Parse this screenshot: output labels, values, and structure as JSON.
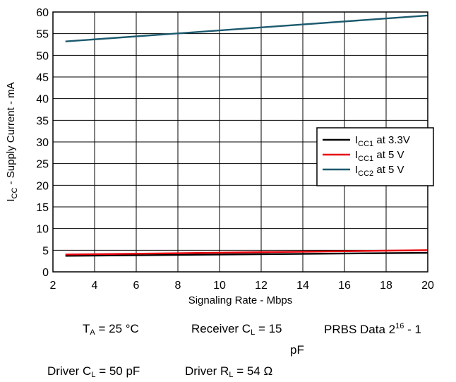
{
  "chart_data": {
    "type": "line",
    "xlabel": "Signaling Rate - Mbps",
    "ylabel": {
      "main": "I",
      "sub": "CC",
      "rest": " - Supply Current - mA"
    },
    "xlim": [
      2,
      20
    ],
    "ylim": [
      0,
      60
    ],
    "xticks": [
      2,
      4,
      6,
      8,
      10,
      12,
      14,
      16,
      18,
      20
    ],
    "yticks": [
      0,
      5,
      10,
      15,
      20,
      25,
      30,
      35,
      40,
      45,
      50,
      55,
      60
    ],
    "grid": true,
    "legend_position": "right",
    "series": [
      {
        "name": "ICC1 at 3.3V",
        "label_main": "I",
        "label_sub": "CC1",
        "label_rest": " at 3.3V",
        "color": "#000000",
        "x": [
          2.6,
          20
        ],
        "y": [
          3.7,
          4.4
        ]
      },
      {
        "name": "ICC1 at 5 V",
        "label_main": "I",
        "label_sub": "CC1",
        "label_rest": " at 5 V",
        "color": "#e8000b",
        "x": [
          2.6,
          20
        ],
        "y": [
          4.0,
          5.0
        ]
      },
      {
        "name": "ICC2 at 5 V",
        "label_main": "I",
        "label_sub": "CC2",
        "label_rest": " at 5 V",
        "color": "#1b5a6e",
        "x": [
          2.6,
          20
        ],
        "y": [
          53.2,
          59.2
        ]
      }
    ]
  },
  "conditions": {
    "ta_main": "T",
    "ta_sub": "A",
    "ta_rest": " = 25 °C",
    "rcl_main": "Receiver C",
    "rcl_sub": "L",
    "rcl_rest": " = 15",
    "rcl_unit": "pF",
    "prbs_main": "PRBS Data 2",
    "prbs_sup": "16",
    "prbs_rest": " - 1",
    "dcl_main": "Driver C",
    "dcl_sub": "L",
    "dcl_rest": " = 50 pF",
    "drl_main": "Driver R",
    "drl_sub": "L",
    "drl_rest": " = 54 Ω"
  }
}
